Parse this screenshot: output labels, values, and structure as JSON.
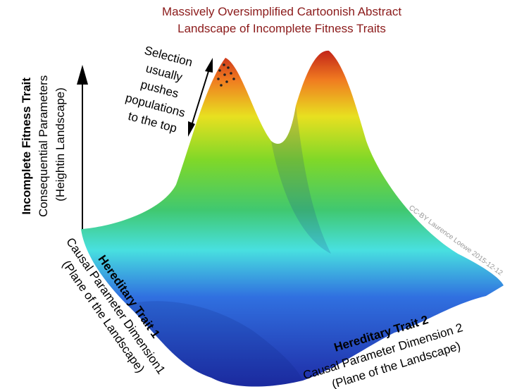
{
  "title": {
    "lines": [
      "Massively Oversimplified Cartoonish Abstract",
      "Landscape of Incomplete Fitness Traits"
    ]
  },
  "annotation": {
    "lines": [
      "Selection",
      "usually",
      "pushes",
      "populations",
      "to the top"
    ]
  },
  "vertical_axis": {
    "heading": "Incomplete Fitness Trait",
    "lines": [
      "Consequential Parameters",
      "(Heightin Landscape)"
    ]
  },
  "trait_1": {
    "heading": "Hereditary Trait 1",
    "lines": [
      "Causal Parameter Dimension1",
      "(Plane of the Landscape)"
    ]
  },
  "trait_2": {
    "heading": "Hereditary Trait 2",
    "lines": [
      "Causal Parameter Dimension 2",
      "(Plane of the Landscape)"
    ]
  },
  "credit": "CC-BY Laurence Loewe 2015-12-12"
}
